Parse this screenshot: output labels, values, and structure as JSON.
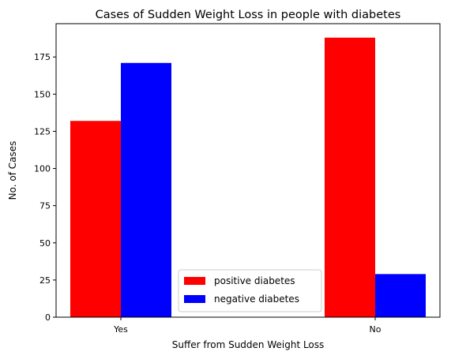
{
  "chart_data": {
    "type": "bar",
    "title": "Cases of Sudden Weight Loss in people with diabetes",
    "xlabel": "Suffer from Sudden Weight Loss",
    "ylabel": "No. of Cases",
    "categories": [
      "Yes",
      "No"
    ],
    "series": [
      {
        "name": "positive diabetes",
        "values": [
          132,
          188
        ],
        "color": "#ff0000"
      },
      {
        "name": "negative diabetes",
        "values": [
          171,
          29
        ],
        "color": "#0000ff"
      }
    ],
    "ylim": [
      0,
      197.4
    ],
    "yticks": [
      0,
      25,
      50,
      75,
      100,
      125,
      150,
      175
    ],
    "legend_position": "lower-center",
    "grid": false
  }
}
